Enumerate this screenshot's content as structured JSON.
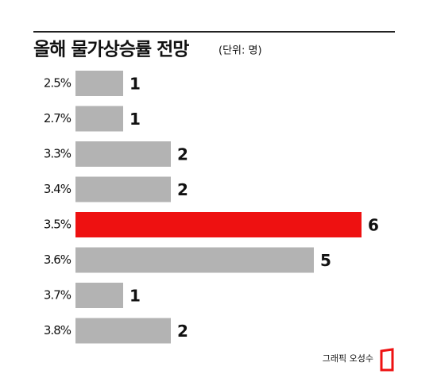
{
  "chart_data": {
    "type": "bar",
    "orientation": "horizontal",
    "title": "올해 물가상승률 전망",
    "subtitle": "(단위: 명)",
    "categories": [
      "2.5%",
      "2.7%",
      "3.3%",
      "3.4%",
      "3.5%",
      "3.6%",
      "3.7%",
      "3.8%"
    ],
    "values": [
      1,
      1,
      2,
      2,
      6,
      5,
      1,
      2
    ],
    "colors": [
      "#b3b3b3",
      "#b3b3b3",
      "#b3b3b3",
      "#b3b3b3",
      "#ee1111",
      "#b3b3b3",
      "#b3b3b3",
      "#b3b3b3"
    ],
    "credit": "그래픽 오성수"
  }
}
